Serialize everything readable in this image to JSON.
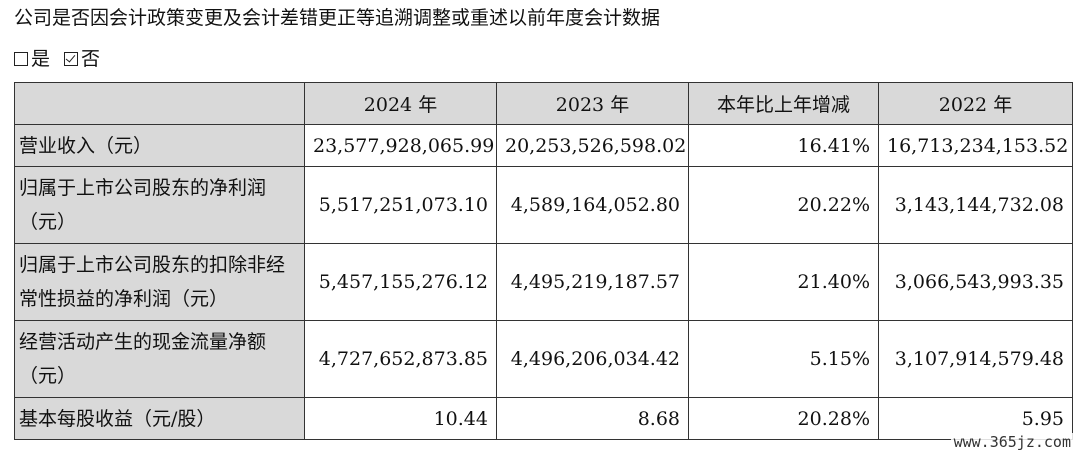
{
  "heading": "公司是否因会计政策变更及会计差错更正等追溯调整或重述以前年度会计数据",
  "options": {
    "yes_label": "是",
    "no_label": "否",
    "selected": "否"
  },
  "table": {
    "columns": [
      "",
      "2024 年",
      "2023 年",
      "本年比上年增减",
      "2022 年"
    ],
    "rows": [
      {
        "label": "营业收入（元）",
        "values": [
          "23,577,928,065.99",
          "20,253,526,598.02",
          "16.41%",
          "16,713,234,153.52"
        ]
      },
      {
        "label": "归属于上市公司股东的净利润（元）",
        "values": [
          "5,517,251,073.10",
          "4,589,164,052.80",
          "20.22%",
          "3,143,144,732.08"
        ]
      },
      {
        "label": "归属于上市公司股东的扣除非经常性损益的净利润（元）",
        "values": [
          "5,457,155,276.12",
          "4,495,219,187.57",
          "21.40%",
          "3,066,543,993.35"
        ]
      },
      {
        "label": "经营活动产生的现金流量净额（元）",
        "values": [
          "4,727,652,873.85",
          "4,496,206,034.42",
          "5.15%",
          "3,107,914,579.48"
        ]
      },
      {
        "label": "基本每股收益（元/股）",
        "values": [
          "10.44",
          "8.68",
          "20.28%",
          "5.95"
        ]
      }
    ]
  },
  "watermark": "www.365jz.com"
}
